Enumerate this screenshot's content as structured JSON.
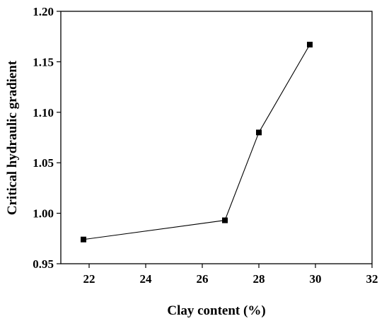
{
  "chart_data": {
    "type": "line",
    "title": "",
    "xlabel": "Clay content (%)",
    "ylabel": "Critical hydraulic gradient",
    "xlim": [
      21,
      32
    ],
    "ylim": [
      0.95,
      1.2
    ],
    "xticks": [
      22,
      24,
      26,
      28,
      30,
      32
    ],
    "yticks": [
      0.95,
      1.0,
      1.05,
      1.1,
      1.15,
      1.2
    ],
    "xtick_labels": [
      "22",
      "24",
      "26",
      "28",
      "30",
      "32"
    ],
    "ytick_labels": [
      "0.95",
      "1.00",
      "1.05",
      "1.10",
      "1.15",
      "1.20"
    ],
    "grid": false,
    "marker": "square",
    "color": "#000000",
    "series": [
      {
        "x": [
          21.8,
          26.8,
          28.0,
          29.8
        ],
        "y": [
          0.974,
          0.993,
          1.08,
          1.167
        ]
      }
    ]
  }
}
